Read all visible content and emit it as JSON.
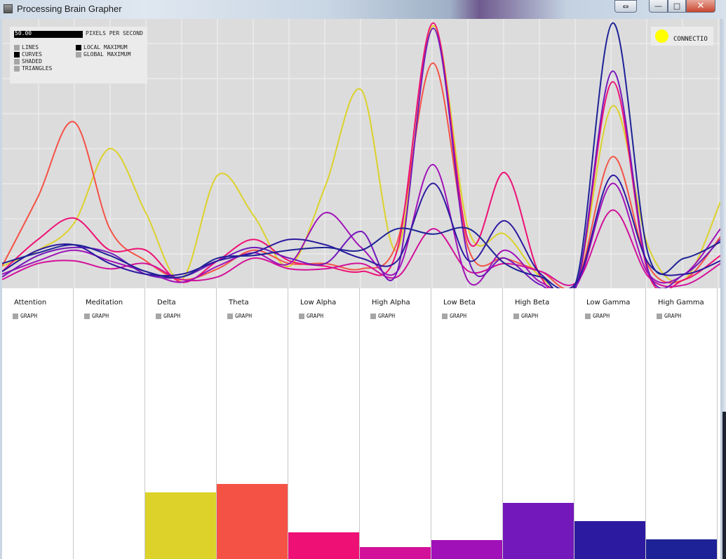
{
  "window": {
    "title": "Processing Brain Grapher",
    "buttons": {
      "close_label": "✕",
      "max_label": "□",
      "min_label": "—",
      "swap_label": "⇔"
    }
  },
  "controls": {
    "pixels_per_second_value": "50.00",
    "pixels_per_second_label": "PIXELS PER SECOND",
    "render_options": [
      {
        "label": "LINES",
        "selected": false
      },
      {
        "label": "CURVES",
        "selected": true
      },
      {
        "label": "SHADED",
        "selected": false
      },
      {
        "label": "TRIANGLES",
        "selected": false
      }
    ],
    "marker_options": [
      {
        "label": "LOCAL MAXIMUM",
        "selected": true
      },
      {
        "label": "GLOBAL MAXIMUM",
        "selected": false
      }
    ]
  },
  "connection": {
    "label": "CONNECTIO",
    "status_color": "#ffff00"
  },
  "channels": [
    {
      "name": "Attention",
      "graph_label": "GRAPH",
      "color": "#ffffff",
      "level": 0
    },
    {
      "name": "Meditation",
      "graph_label": "GRAPH",
      "color": "#ffffff",
      "level": 0
    },
    {
      "name": "Delta",
      "graph_label": "GRAPH",
      "color": "#dcd22a",
      "level": 0.247
    },
    {
      "name": "Theta",
      "graph_label": "GRAPH",
      "color": "#f55246",
      "level": 0.277
    },
    {
      "name": "Low Alpha",
      "graph_label": "GRAPH",
      "color": "#ee1075",
      "level": 0.099
    },
    {
      "name": "High Alpha",
      "graph_label": "GRAPH",
      "color": "#d2109a",
      "level": 0.044
    },
    {
      "name": "Low Beta",
      "graph_label": "GRAPH",
      "color": "#a111b8",
      "level": 0.07
    },
    {
      "name": "High Beta",
      "graph_label": "GRAPH",
      "color": "#7318bb",
      "level": 0.208
    },
    {
      "name": "Low Gamma",
      "graph_label": "GRAPH",
      "color": "#2c1aa0",
      "level": 0.14
    },
    {
      "name": "High Gamma",
      "graph_label": "GRAPH",
      "color": "#1d2296",
      "level": 0.073
    }
  ],
  "chart_data": {
    "type": "line",
    "ylim": [
      0,
      100
    ],
    "grid": true,
    "x": [
      0,
      1,
      2,
      3,
      4,
      5,
      6,
      7,
      8,
      9,
      10,
      11,
      12,
      13,
      14,
      15,
      16,
      17,
      18,
      19,
      20
    ],
    "series": [
      {
        "color": "#dcd22a",
        "values": [
          8,
          14,
          24,
          52,
          28,
          3,
          42,
          27,
          8,
          38,
          74,
          14,
          98,
          21,
          20,
          4,
          2,
          68,
          15,
          3,
          32
        ]
      },
      {
        "color": "#f55246",
        "values": [
          8,
          34,
          62,
          22,
          10,
          3,
          7,
          14,
          9,
          9,
          7,
          17,
          84,
          14,
          11,
          6,
          2,
          49,
          8,
          3,
          19
        ]
      },
      {
        "color": "#ee1075",
        "values": [
          6,
          18,
          26,
          14,
          14,
          2,
          10,
          18,
          10,
          8,
          6,
          14,
          99,
          17,
          43,
          4,
          1,
          77,
          5,
          3,
          12
        ]
      },
      {
        "color": "#d2109a",
        "values": [
          3,
          9,
          10,
          7,
          9,
          3,
          4,
          11,
          7,
          7,
          9,
          4,
          22,
          6,
          9,
          6,
          2,
          29,
          4,
          1,
          9
        ]
      },
      {
        "color": "#a111b8",
        "values": [
          5,
          10,
          14,
          10,
          6,
          2,
          8,
          13,
          9,
          28,
          15,
          6,
          46,
          2,
          14,
          2,
          1,
          39,
          5,
          5,
          22
        ]
      },
      {
        "color": "#7318bb",
        "values": [
          4,
          12,
          15,
          13,
          5,
          4,
          10,
          15,
          11,
          9,
          21,
          6,
          97,
          10,
          11,
          1,
          1,
          81,
          6,
          5,
          18
        ]
      },
      {
        "color": "#2c1aa0",
        "values": [
          6,
          14,
          16,
          9,
          5,
          5,
          10,
          13,
          18,
          16,
          11,
          10,
          39,
          10,
          25,
          5,
          2,
          42,
          9,
          5,
          10
        ]
      },
      {
        "color": "#1d2296",
        "values": [
          9,
          13,
          16,
          12,
          6,
          4,
          11,
          12,
          14,
          15,
          14,
          22,
          20,
          22,
          9,
          4,
          3,
          99,
          12,
          11,
          17
        ]
      }
    ]
  }
}
